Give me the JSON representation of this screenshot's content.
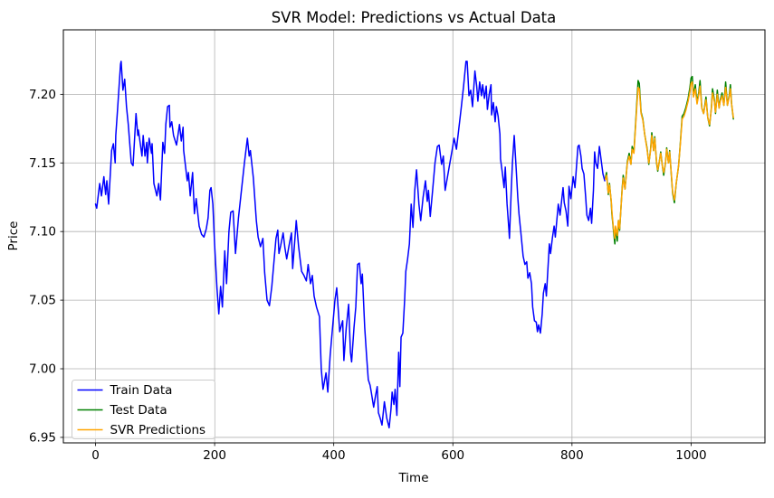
{
  "chart_data": {
    "type": "line",
    "title": "SVR Model: Predictions vs Actual Data",
    "xlabel": "Time",
    "ylabel": "Price",
    "grid": true,
    "legend_position": "lower left",
    "xlim": [
      -54,
      1124
    ],
    "ylim": [
      6.946,
      7.247
    ],
    "xticks": [
      0,
      200,
      400,
      600,
      800,
      1000
    ],
    "xtick_labels": [
      "0",
      "200",
      "400",
      "600",
      "800",
      "1000"
    ],
    "yticks": [
      6.95,
      7.0,
      7.05,
      7.1,
      7.15,
      7.2
    ],
    "ytick_labels": [
      "6.95",
      "7.00",
      "7.05",
      "7.10",
      "7.15",
      "7.20"
    ],
    "grid_color": "#b0b0b0",
    "spine_color": "#000000",
    "series": [
      {
        "name": "Train Data",
        "color": "#0000ff",
        "x": [
          0,
          2,
          7,
          10,
          14,
          17,
          19,
          22,
          27,
          30,
          33,
          34,
          37,
          42,
          43,
          46,
          49,
          52,
          55,
          60,
          63,
          68,
          71,
          72,
          78,
          80,
          83,
          86,
          87,
          90,
          94,
          95,
          98,
          103,
          106,
          109,
          113,
          116,
          118,
          121,
          124,
          125,
          128,
          131,
          136,
          141,
          144,
          147,
          148,
          154,
          156,
          159,
          163,
          166,
          169,
          174,
          178,
          182,
          186,
          189,
          192,
          194,
          197,
          200,
          204,
          207,
          210,
          213,
          217,
          220,
          224,
          227,
          231,
          235,
          240,
          245,
          250,
          255,
          258,
          260,
          265,
          270,
          273,
          277,
          281,
          284,
          288,
          292,
          296,
          300,
          303,
          306,
          308,
          311,
          315,
          318,
          321,
          325,
          329,
          331,
          334,
          337,
          341,
          346,
          350,
          354,
          357,
          361,
          364,
          367,
          371,
          376,
          379,
          382,
          387,
          390,
          394,
          398,
          402,
          405,
          408,
          410,
          413,
          415,
          417,
          421,
          425,
          428,
          430,
          434,
          437,
          440,
          443,
          446,
          448,
          452,
          455,
          458,
          461,
          463,
          467,
          470,
          473,
          475,
          478,
          481,
          485,
          489,
          493,
          496,
          498,
          501,
          503,
          506,
          509,
          511,
          513,
          516,
          519,
          521,
          524,
          527,
          530,
          533,
          536,
          539,
          543,
          546,
          550,
          554,
          557,
          559,
          562,
          566,
          570,
          574,
          577,
          581,
          584,
          587,
          591,
          595,
          599,
          602,
          606,
          610,
          614,
          618,
          622,
          624,
          627,
          630,
          633,
          637,
          640,
          642,
          645,
          648,
          650,
          653,
          656,
          658,
          661,
          664,
          665,
          668,
          671,
          673,
          676,
          679,
          680,
          683,
          686,
          688,
          691,
          694,
          695,
          698,
          700,
          703,
          706,
          709,
          711,
          714,
          718,
          721,
          724,
          726,
          729,
          732,
          734,
          737,
          740,
          742,
          744,
          747,
          750,
          752,
          755,
          757,
          762,
          764,
          767,
          770,
          772,
          777,
          780,
          785,
          787,
          790,
          793,
          795,
          798,
          802,
          805,
          810,
          812,
          815,
          817,
          820,
          823,
          825,
          828,
          831,
          833,
          836,
          838,
          840,
          843,
          846,
          849,
          852,
          855
        ],
        "y": [
          7.12,
          7.117,
          7.135,
          7.126,
          7.14,
          7.127,
          7.137,
          7.12,
          7.159,
          7.164,
          7.15,
          7.17,
          7.189,
          7.222,
          7.224,
          7.203,
          7.211,
          7.191,
          7.178,
          7.15,
          7.148,
          7.186,
          7.17,
          7.174,
          7.155,
          7.17,
          7.155,
          7.165,
          7.15,
          7.168,
          7.157,
          7.164,
          7.135,
          7.126,
          7.135,
          7.123,
          7.165,
          7.157,
          7.178,
          7.191,
          7.192,
          7.176,
          7.18,
          7.17,
          7.163,
          7.178,
          7.166,
          7.176,
          7.159,
          7.137,
          7.143,
          7.126,
          7.143,
          7.113,
          7.124,
          7.104,
          7.098,
          7.096,
          7.102,
          7.11,
          7.13,
          7.132,
          7.12,
          7.09,
          7.058,
          7.04,
          7.06,
          7.045,
          7.086,
          7.062,
          7.1,
          7.114,
          7.115,
          7.084,
          7.11,
          7.13,
          7.15,
          7.168,
          7.155,
          7.159,
          7.139,
          7.108,
          7.096,
          7.089,
          7.095,
          7.07,
          7.05,
          7.046,
          7.06,
          7.08,
          7.095,
          7.101,
          7.084,
          7.09,
          7.099,
          7.088,
          7.08,
          7.09,
          7.099,
          7.073,
          7.09,
          7.108,
          7.089,
          7.071,
          7.068,
          7.064,
          7.076,
          7.062,
          7.068,
          7.053,
          7.045,
          7.038,
          7.0,
          6.985,
          6.997,
          6.983,
          7.01,
          7.03,
          7.05,
          7.059,
          7.04,
          7.027,
          7.032,
          7.035,
          7.006,
          7.03,
          7.047,
          7.012,
          7.005,
          7.03,
          7.045,
          7.076,
          7.077,
          7.062,
          7.069,
          7.03,
          7.01,
          6.992,
          6.988,
          6.983,
          6.972,
          6.98,
          6.987,
          6.968,
          6.964,
          6.959,
          6.976,
          6.964,
          6.957,
          6.97,
          6.983,
          6.974,
          6.985,
          6.966,
          7.012,
          6.987,
          7.023,
          7.026,
          7.05,
          7.071,
          7.08,
          7.091,
          7.12,
          7.103,
          7.13,
          7.145,
          7.12,
          7.108,
          7.125,
          7.137,
          7.122,
          7.13,
          7.111,
          7.13,
          7.15,
          7.162,
          7.163,
          7.149,
          7.155,
          7.13,
          7.14,
          7.15,
          7.16,
          7.168,
          7.16,
          7.175,
          7.19,
          7.206,
          7.224,
          7.224,
          7.199,
          7.203,
          7.191,
          7.217,
          7.206,
          7.195,
          7.209,
          7.199,
          7.207,
          7.197,
          7.206,
          7.189,
          7.2,
          7.207,
          7.185,
          7.194,
          7.18,
          7.191,
          7.184,
          7.171,
          7.153,
          7.143,
          7.132,
          7.147,
          7.12,
          7.102,
          7.095,
          7.13,
          7.15,
          7.17,
          7.148,
          7.125,
          7.113,
          7.1,
          7.082,
          7.076,
          7.078,
          7.066,
          7.07,
          7.062,
          7.045,
          7.035,
          7.034,
          7.027,
          7.032,
          7.026,
          7.04,
          7.055,
          7.062,
          7.053,
          7.091,
          7.084,
          7.095,
          7.104,
          7.096,
          7.12,
          7.112,
          7.132,
          7.121,
          7.115,
          7.104,
          7.133,
          7.124,
          7.14,
          7.132,
          7.162,
          7.163,
          7.155,
          7.146,
          7.142,
          7.125,
          7.112,
          7.108,
          7.117,
          7.106,
          7.13,
          7.158,
          7.15,
          7.146,
          7.162,
          7.152,
          7.142,
          7.137
        ]
      },
      {
        "name": "Test Data",
        "color": "#008000",
        "x": [
          856,
          858,
          861,
          863,
          866,
          867,
          869,
          871,
          872,
          873,
          876,
          878,
          880,
          884,
          886,
          889,
          893,
          896,
          899,
          901,
          904,
          907,
          909,
          911,
          913,
          916,
          919,
          922,
          926,
          929,
          932,
          934,
          937,
          939,
          942,
          944,
          947,
          949,
          952,
          954,
          957,
          959,
          962,
          964,
          967,
          969,
          972,
          975,
          979,
          982,
          985,
          988,
          991,
          995,
          998,
          1000,
          1002,
          1004,
          1007,
          1010,
          1013,
          1015,
          1018,
          1021,
          1025,
          1028,
          1031,
          1034,
          1036,
          1039,
          1041,
          1044,
          1047,
          1049,
          1052,
          1055,
          1058,
          1061,
          1064,
          1066,
          1068,
          1071
        ],
        "y": [
          7.139,
          7.143,
          7.127,
          7.135,
          7.121,
          7.113,
          7.104,
          7.095,
          7.091,
          7.103,
          7.093,
          7.108,
          7.101,
          7.13,
          7.141,
          7.131,
          7.151,
          7.157,
          7.149,
          7.162,
          7.158,
          7.18,
          7.195,
          7.21,
          7.208,
          7.187,
          7.182,
          7.171,
          7.161,
          7.149,
          7.16,
          7.172,
          7.159,
          7.169,
          7.15,
          7.144,
          7.152,
          7.158,
          7.147,
          7.141,
          7.15,
          7.161,
          7.15,
          7.159,
          7.14,
          7.128,
          7.121,
          7.135,
          7.148,
          7.165,
          7.184,
          7.186,
          7.19,
          7.197,
          7.205,
          7.212,
          7.213,
          7.199,
          7.207,
          7.194,
          7.202,
          7.21,
          7.19,
          7.186,
          7.198,
          7.183,
          7.177,
          7.19,
          7.204,
          7.196,
          7.186,
          7.203,
          7.19,
          7.196,
          7.201,
          7.192,
          7.209,
          7.192,
          7.199,
          7.207,
          7.193,
          7.182
        ]
      },
      {
        "name": "SVR Predictions",
        "color": "#ffa500",
        "x": [
          856,
          858,
          861,
          863,
          866,
          867,
          869,
          871,
          872,
          873,
          876,
          878,
          880,
          884,
          886,
          889,
          893,
          896,
          899,
          901,
          904,
          907,
          909,
          911,
          913,
          916,
          919,
          922,
          926,
          929,
          932,
          934,
          937,
          939,
          942,
          944,
          947,
          949,
          952,
          954,
          957,
          959,
          962,
          964,
          967,
          969,
          972,
          975,
          979,
          982,
          985,
          988,
          991,
          995,
          998,
          1000,
          1002,
          1004,
          1007,
          1010,
          1013,
          1015,
          1018,
          1021,
          1025,
          1028,
          1031,
          1034,
          1036,
          1039,
          1041,
          1044,
          1047,
          1049,
          1052,
          1055,
          1058,
          1061,
          1064,
          1066,
          1068,
          1071
        ],
        "y": [
          7.138,
          7.141,
          7.128,
          7.134,
          7.122,
          7.115,
          7.105,
          7.098,
          7.095,
          7.104,
          7.097,
          7.108,
          7.102,
          7.129,
          7.139,
          7.131,
          7.15,
          7.155,
          7.149,
          7.16,
          7.157,
          7.178,
          7.192,
          7.205,
          7.204,
          7.186,
          7.181,
          7.171,
          7.16,
          7.15,
          7.159,
          7.17,
          7.159,
          7.168,
          7.151,
          7.145,
          7.152,
          7.157,
          7.147,
          7.143,
          7.15,
          7.16,
          7.15,
          7.158,
          7.141,
          7.129,
          7.123,
          7.135,
          7.148,
          7.164,
          7.182,
          7.184,
          7.188,
          7.195,
          7.202,
          7.208,
          7.209,
          7.198,
          7.204,
          7.193,
          7.2,
          7.206,
          7.19,
          7.186,
          7.196,
          7.183,
          7.178,
          7.189,
          7.201,
          7.195,
          7.187,
          7.2,
          7.19,
          7.195,
          7.199,
          7.192,
          7.205,
          7.192,
          7.198,
          7.204,
          7.193,
          7.183
        ]
      }
    ],
    "legend": {
      "items": [
        {
          "label": "Train Data",
          "color": "#0000ff"
        },
        {
          "label": "Test Data",
          "color": "#008000"
        },
        {
          "label": "SVR Predictions",
          "color": "#ffa500"
        }
      ]
    }
  },
  "colors": {
    "background": "#ffffff",
    "grid": "#b0b0b0",
    "train": "#0000ff",
    "test": "#008000",
    "svr": "#ffa500",
    "legend_border": "#cccccc"
  }
}
